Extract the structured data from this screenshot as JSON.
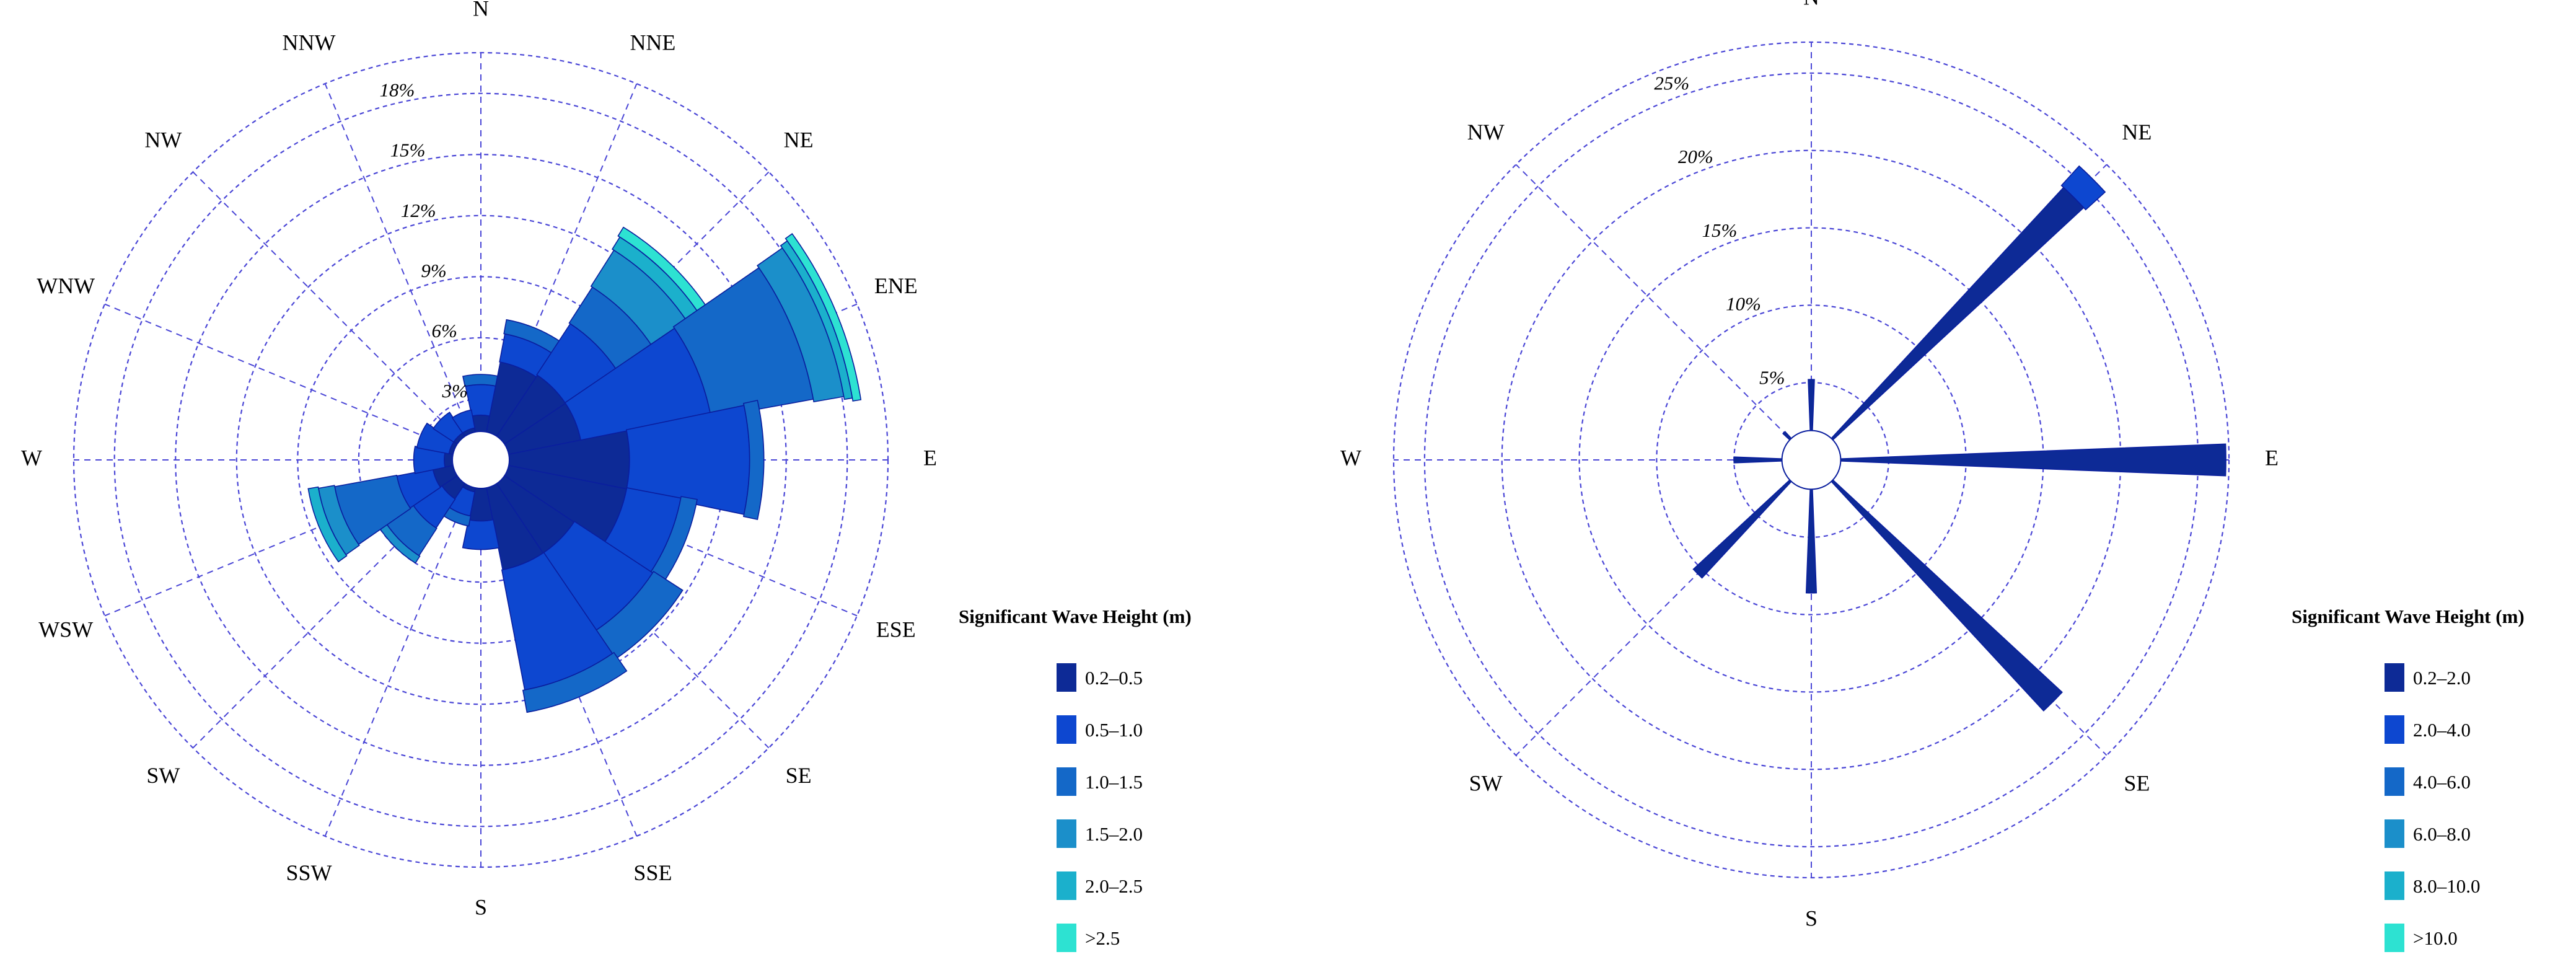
{
  "palette": {
    "grid": "#4a46d6",
    "axis": "#8a88e0",
    "petal_edge": "#0a1e9e",
    "text": "#000000"
  },
  "chart_data": [
    {
      "type": "wind-rose",
      "xlabel": "",
      "ylabel": "",
      "directions": [
        "N",
        "NNE",
        "NE",
        "ENE",
        "E",
        "ESE",
        "SE",
        "SSE",
        "S",
        "SSW",
        "SW",
        "WSW",
        "W",
        "WNW",
        "NW",
        "NNW"
      ],
      "radial_ticks": [
        "3%",
        "6%",
        "9%",
        "12%",
        "15%",
        "18%"
      ],
      "radial_values": [
        3,
        6,
        9,
        12,
        15,
        18
      ],
      "rmax": 20,
      "hub_radius_pct": 1.4,
      "legend": {
        "title": "Significant Wave Height (m)",
        "bins": [
          "0.2–0.5",
          "0.5–1.0",
          "1.0–1.5",
          "1.5–2.0",
          "2.0–2.5",
          ">2.5"
        ],
        "colors": [
          "#0d2a96",
          "#0d47d0",
          "#1468c8",
          "#1b8fca",
          "#1bb0cc",
          "#2de2d2"
        ]
      },
      "series": [
        {
          "dir": "N",
          "cumulative": [
            2.2,
            3.7,
            4.2
          ]
        },
        {
          "dir": "NNE",
          "cumulative": [
            4.9,
            6.3,
            7.0
          ]
        },
        {
          "dir": "NE",
          "cumulative": [
            5.0,
            8.0,
            10.1,
            12.2,
            12.9,
            13.4
          ]
        },
        {
          "dir": "ENE",
          "cumulative": [
            5.0,
            11.5,
            16.6,
            18.1,
            18.5,
            18.9
          ]
        },
        {
          "dir": "E",
          "cumulative": [
            7.3,
            13.2,
            13.9
          ]
        },
        {
          "dir": "ESE",
          "cumulative": [
            7.3,
            10.0,
            10.8
          ]
        },
        {
          "dir": "SE",
          "cumulative": [
            5.5,
            10.1,
            11.8
          ]
        },
        {
          "dir": "SSE",
          "cumulative": [
            5.5,
            11.5,
            12.6
          ]
        },
        {
          "dir": "S",
          "cumulative": [
            3.0,
            4.4
          ]
        },
        {
          "dir": "SSW",
          "cumulative": [
            1.6,
            2.8,
            3.3
          ]
        },
        {
          "dir": "SW",
          "cumulative": [
            2.3,
            4.0,
            5.6,
            6.0
          ]
        },
        {
          "dir": "WSW",
          "cumulative": [
            2.4,
            4.2,
            7.3,
            8.1,
            8.6
          ]
        },
        {
          "dir": "W",
          "cumulative": [
            1.8,
            3.3
          ]
        },
        {
          "dir": "WNW",
          "cumulative": [
            1.6,
            3.2
          ]
        },
        {
          "dir": "NW",
          "cumulative": [
            1.6,
            2.8
          ]
        },
        {
          "dir": "NNW",
          "cumulative": [
            1.6,
            2.5
          ]
        }
      ]
    },
    {
      "type": "wind-rose",
      "xlabel": "",
      "ylabel": "",
      "directions": [
        "N",
        "NE",
        "E",
        "SE",
        "S",
        "SW",
        "W",
        "NW"
      ],
      "radial_ticks": [
        "5%",
        "10%",
        "15%",
        "20%",
        "25%"
      ],
      "radial_values": [
        5,
        10,
        15,
        20,
        25
      ],
      "rmax": 27,
      "hub_radius_pct": 1.9,
      "legend": {
        "title": "Significant Wave Height (m)",
        "bins": [
          "0.2–2.0",
          "2.0–4.0",
          "4.0–6.0",
          "6.0–8.0",
          "8.0–10.0",
          ">10.0"
        ],
        "colors": [
          "#0d2a96",
          "#0d47d0",
          "#1468c8",
          "#1b8fca",
          "#1bb0cc",
          "#2de2d2"
        ]
      },
      "series": [
        {
          "dir": "N",
          "cumulative": [
            5.2
          ]
        },
        {
          "dir": "NE",
          "cumulative": [
            24.0,
            25.7
          ]
        },
        {
          "dir": "E",
          "cumulative": [
            26.8
          ]
        },
        {
          "dir": "SE",
          "cumulative": [
            22.1
          ]
        },
        {
          "dir": "S",
          "cumulative": [
            8.6
          ]
        },
        {
          "dir": "SW",
          "cumulative": [
            10.4
          ]
        },
        {
          "dir": "W",
          "cumulative": [
            5.0
          ]
        },
        {
          "dir": "NW",
          "cumulative": [
            2.5
          ]
        }
      ]
    }
  ]
}
